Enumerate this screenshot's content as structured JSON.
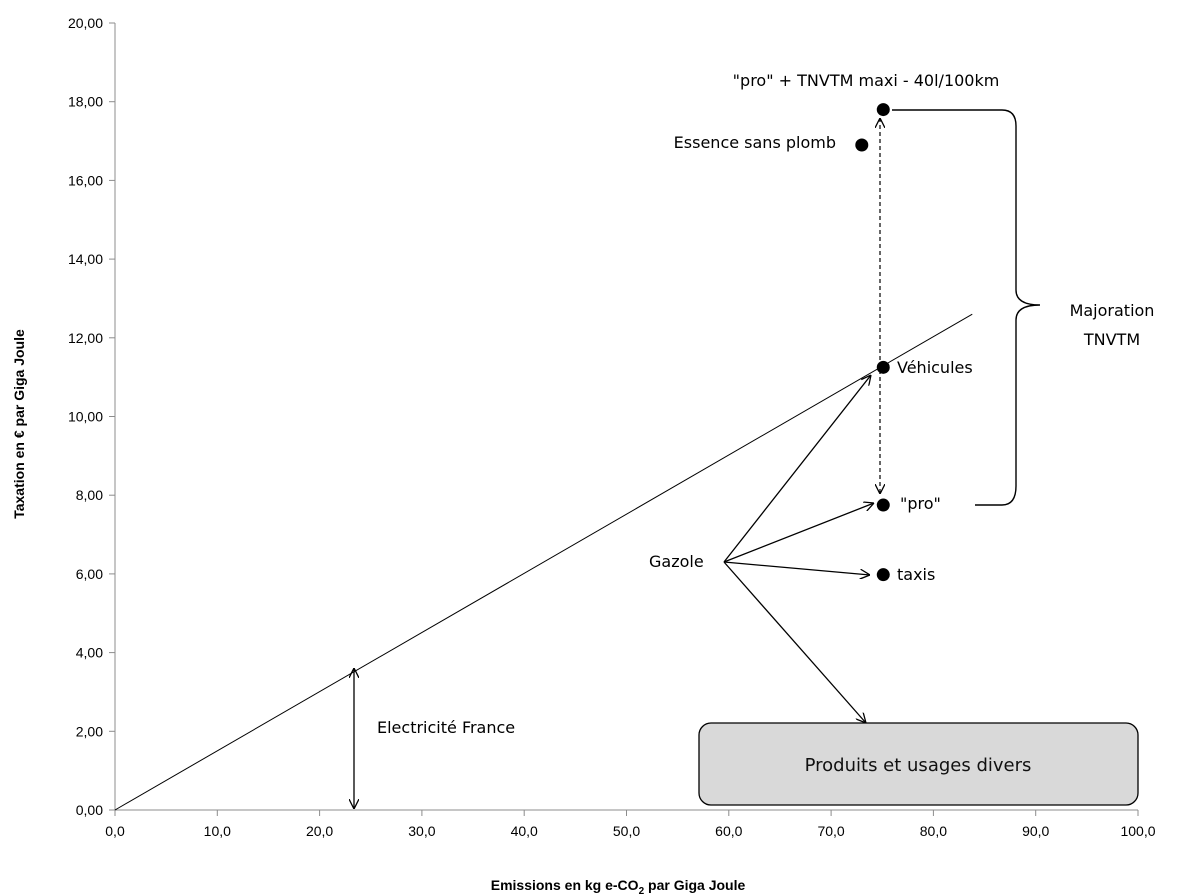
{
  "chart_data": {
    "type": "scatter",
    "xlabel": "Emissions en kg e-CO",
    "xlabel_sub": "2",
    "xlabel_tail": " par Giga Joule",
    "ylabel": "Taxation en € par Giga Joule",
    "xlim": [
      0,
      100
    ],
    "ylim": [
      0,
      20
    ],
    "x_ticks": [
      "0,0",
      "10,0",
      "20,0",
      "30,0",
      "40,0",
      "50,0",
      "60,0",
      "70,0",
      "80,0",
      "90,0",
      "100,0"
    ],
    "y_ticks": [
      "0,00",
      "2,00",
      "4,00",
      "6,00",
      "8,00",
      "10,00",
      "12,00",
      "14,00",
      "16,00",
      "18,00",
      "20,00"
    ],
    "grid": false,
    "reference_line": {
      "x": [
        0,
        83.8
      ],
      "y": [
        0,
        12.6
      ]
    },
    "points": [
      {
        "label": "\"pro\" + TNVTM maxi - 40l/100km",
        "x": 75.1,
        "y": 17.8
      },
      {
        "label": "Essence sans plomb",
        "x": 73.0,
        "y": 16.9
      },
      {
        "label": "Véhicules",
        "x": 75.1,
        "y": 11.25
      },
      {
        "label": "\"pro\"",
        "x": 75.1,
        "y": 7.75
      },
      {
        "label": "taxis",
        "x": 75.1,
        "y": 5.98
      }
    ],
    "annotations": {
      "gazole": "Gazole",
      "electricite": "Electricité France",
      "majoration_line1": "Majoration",
      "majoration_line2": "TNVTM",
      "box": "Produits et usages  divers"
    },
    "colors": {
      "text": "#000000",
      "box_fill": "#d9d9d9",
      "box_stroke": "#000000"
    }
  }
}
